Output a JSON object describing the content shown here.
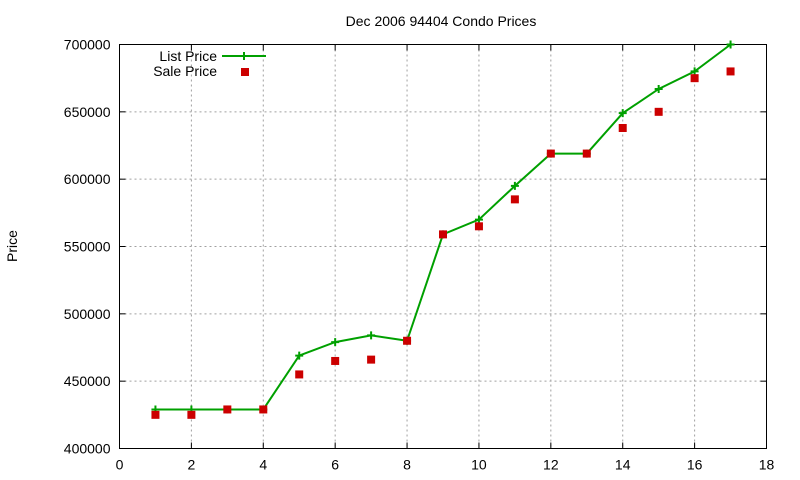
{
  "chart_data": {
    "type": "line",
    "title": "Dec 2006 94404 Condo Prices",
    "xlabel": "",
    "ylabel": "Price",
    "xlim": [
      0,
      18
    ],
    "ylim": [
      400000,
      700000
    ],
    "xticks": [
      0,
      2,
      4,
      6,
      8,
      10,
      12,
      14,
      16,
      18
    ],
    "yticks": [
      400000,
      450000,
      500000,
      550000,
      600000,
      650000,
      700000
    ],
    "grid": true,
    "legend_position": "top-left",
    "x": [
      1,
      2,
      3,
      4,
      5,
      6,
      7,
      8,
      9,
      10,
      11,
      12,
      13,
      14,
      15,
      16,
      17
    ],
    "series": [
      {
        "name": "List Price",
        "style": "linespoints",
        "color": "#00a000",
        "values": [
          429000,
          429000,
          429000,
          429000,
          469000,
          479000,
          484000,
          480000,
          559000,
          570000,
          595000,
          619000,
          619000,
          649000,
          667000,
          680000,
          700000
        ]
      },
      {
        "name": "Sale Price",
        "style": "points",
        "color": "#cc0000",
        "values": [
          425000,
          425000,
          429000,
          429000,
          455000,
          465000,
          466000,
          480000,
          559000,
          565000,
          585000,
          619000,
          619000,
          638000,
          650000,
          675000,
          680000
        ]
      }
    ]
  }
}
